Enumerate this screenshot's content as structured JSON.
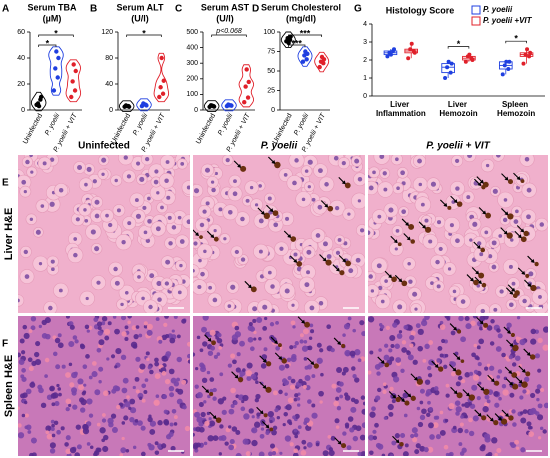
{
  "chart_data": [
    {
      "type": "violin",
      "panel": "A",
      "title": "Serum TBA",
      "subtitle": "(µM)",
      "categories": [
        "Uninfected",
        "P. yoelii",
        "P. yoelii + VIT"
      ],
      "series": [
        {
          "color": "#000000",
          "values": [
            4,
            8,
            5,
            10,
            3
          ]
        },
        {
          "color": "#1f3fe0",
          "values": [
            15,
            25,
            32,
            40,
            45
          ]
        },
        {
          "color": "#e0202a",
          "values": [
            10,
            15,
            22,
            30,
            35
          ]
        }
      ],
      "ylim": [
        0,
        60
      ],
      "yticks": [
        0,
        20,
        40,
        60
      ],
      "annotations": [
        {
          "text": "*",
          "pair": [
            "Uninfected",
            "P. yoelii"
          ]
        },
        {
          "text": "*",
          "pair": [
            "Uninfected",
            "P. yoelii + VIT"
          ]
        }
      ]
    },
    {
      "type": "violin",
      "panel": "B",
      "title": "Serum ALT",
      "subtitle": "(U/l)",
      "categories": [
        "Uninfected",
        "P. yoelii",
        "P. yoelii + VIT"
      ],
      "series": [
        {
          "color": "#000000",
          "values": [
            5,
            6,
            7,
            5,
            6
          ]
        },
        {
          "color": "#1f3fe0",
          "values": [
            6,
            8,
            10,
            7,
            9
          ]
        },
        {
          "color": "#e0202a",
          "values": [
            20,
            25,
            35,
            45,
            80
          ]
        }
      ],
      "ylim": [
        0,
        120
      ],
      "yticks": [
        0,
        40,
        80,
        120
      ],
      "annotations": [
        {
          "text": "*",
          "pair": [
            "Uninfected",
            "P. yoelii + VIT"
          ]
        }
      ]
    },
    {
      "type": "violin",
      "panel": "C",
      "title": "Serum AST",
      "subtitle": "(U/l)",
      "categories": [
        "Uninfected",
        "P. yoelii",
        "P. yoelii + VIT"
      ],
      "series": [
        {
          "color": "#000000",
          "values": [
            20,
            25,
            30,
            22,
            28
          ]
        },
        {
          "color": "#1f3fe0",
          "values": [
            25,
            30,
            35,
            28,
            30
          ]
        },
        {
          "color": "#e0202a",
          "values": [
            50,
            80,
            150,
            180,
            260
          ]
        }
      ],
      "ylim": [
        0,
        500
      ],
      "yticks": [
        0,
        100,
        200,
        300,
        400,
        500
      ],
      "annotations": [
        {
          "text": "p<0.068",
          "pair": [
            "Uninfected",
            "P. yoelii + VIT"
          ]
        }
      ]
    },
    {
      "type": "violin",
      "panel": "D",
      "title": "Serum Cholesterol",
      "subtitle": "(mg/dl)",
      "categories": [
        "Uninfected",
        "P. yoelii",
        "P. yoelii + VIT"
      ],
      "series": [
        {
          "color": "#000000",
          "values": [
            88,
            90,
            92,
            94,
            86
          ]
        },
        {
          "color": "#1f3fe0",
          "values": [
            62,
            65,
            70,
            72,
            75
          ]
        },
        {
          "color": "#e0202a",
          "values": [
            55,
            60,
            62,
            65,
            68
          ]
        }
      ],
      "ylim": [
        0,
        100
      ],
      "yticks": [
        0,
        25,
        50,
        75,
        100
      ],
      "annotations": [
        {
          "text": "***",
          "pair": [
            "Uninfected",
            "P. yoelii"
          ]
        },
        {
          "text": "***",
          "pair": [
            "Uninfected",
            "P. yoelii + VIT"
          ]
        }
      ]
    },
    {
      "type": "box",
      "panel": "G",
      "title": "Histology Score",
      "categories": [
        "Liver Inflammation",
        "Liver Hemozoin",
        "Spleen Hemozoin"
      ],
      "series": [
        {
          "name": "P. yoelii",
          "color": "#1f3fe0",
          "values": [
            [
              2.2,
              2.5,
              2.4,
              2.6,
              2.3
            ],
            [
              1.0,
              1.3,
              1.6,
              1.8,
              1.9
            ],
            [
              1.2,
              1.5,
              1.7,
              1.9,
              1.9
            ]
          ]
        },
        {
          "name": "P. yoelii +VIT",
          "color": "#e0202a",
          "values": [
            [
              2.1,
              2.5,
              2.6,
              2.4,
              2.9
            ],
            [
              1.9,
              2.1,
              2.2,
              2.0,
              2.3
            ],
            [
              1.8,
              2.2,
              2.3,
              2.4,
              2.6
            ]
          ]
        }
      ],
      "ylim": [
        0,
        4
      ],
      "yticks": [
        0,
        1,
        2,
        3,
        4
      ],
      "legend": "top-right",
      "annotations": [
        {
          "text": "*",
          "category": "Liver Hemozoin"
        },
        {
          "text": "*",
          "category": "Spleen Hemozoin"
        }
      ]
    }
  ],
  "histology": {
    "panels": [
      "E",
      "F"
    ],
    "columns": [
      "Uninfected",
      "P. yoelii",
      "P. yoelii + VIT"
    ],
    "rows": [
      "Liver H&E",
      "Spleen H&E"
    ]
  }
}
